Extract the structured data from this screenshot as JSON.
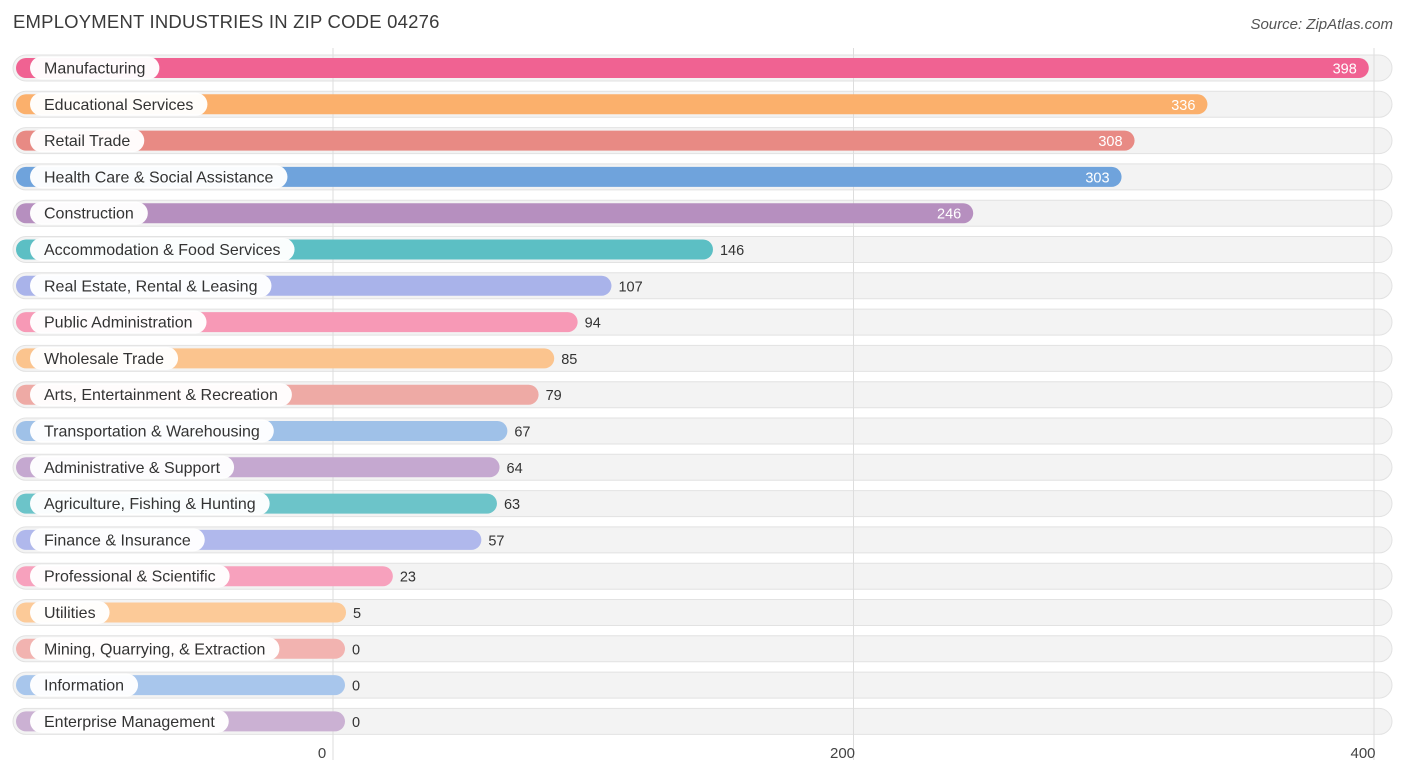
{
  "chart_data": {
    "type": "bar",
    "orientation": "horizontal",
    "title": "EMPLOYMENT INDUSTRIES IN ZIP CODE 04276",
    "source": "Source: ZipAtlas.com",
    "xlim": [
      0,
      400
    ],
    "ticks": [
      0,
      200,
      400
    ],
    "grid": true,
    "categories": [
      "Manufacturing",
      "Educational Services",
      "Retail Trade",
      "Health Care & Social Assistance",
      "Construction",
      "Accommodation & Food Services",
      "Real Estate, Rental & Leasing",
      "Public Administration",
      "Wholesale Trade",
      "Arts, Entertainment & Recreation",
      "Transportation & Warehousing",
      "Administrative & Support",
      "Agriculture, Fishing & Hunting",
      "Finance & Insurance",
      "Professional & Scientific",
      "Utilities",
      "Mining, Quarrying, & Extraction",
      "Information",
      "Enterprise Management"
    ],
    "values": [
      398,
      336,
      308,
      303,
      246,
      146,
      107,
      94,
      85,
      79,
      67,
      64,
      63,
      57,
      23,
      5,
      0,
      0,
      0
    ],
    "colors": [
      "#f06292",
      "#fbb06c",
      "#e88a84",
      "#6fa3dc",
      "#b68fbf",
      "#5cbfc4",
      "#a9b3ea",
      "#f799b6",
      "#fbc48e",
      "#eeaaa5",
      "#9fc1e8",
      "#c5a8d0",
      "#6cc4c9",
      "#b0b8ec",
      "#f7a1bd",
      "#fcca98",
      "#f2b3b0",
      "#a8c6ec",
      "#cbb1d3"
    ]
  }
}
